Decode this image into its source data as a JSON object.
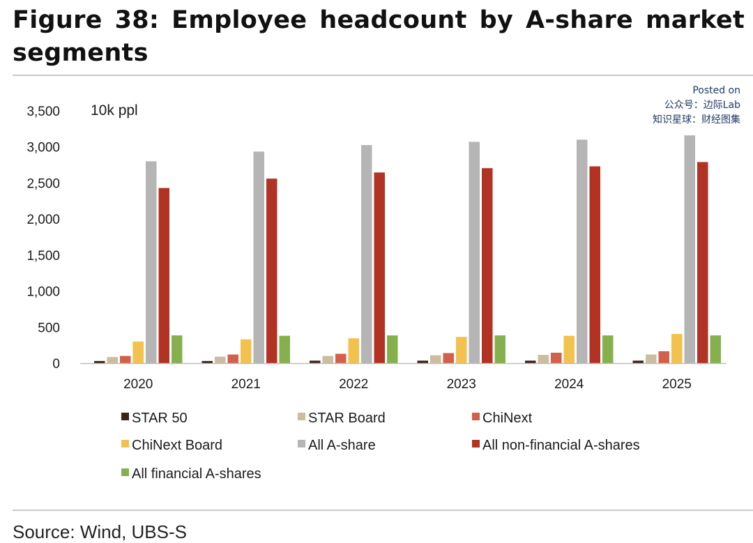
{
  "figure": {
    "title": "Figure 38: Employee headcount by A-share market segments",
    "source": "Source: Wind, UBS-S"
  },
  "watermark": {
    "lines": [
      "Posted on",
      "公众号：边际Lab",
      "知识星球：财经图集"
    ]
  },
  "chart_data": {
    "type": "bar",
    "title": "",
    "unit_label": "10k ppl",
    "xlabel": "",
    "ylabel": "",
    "ylim": [
      0,
      3500
    ],
    "yticks": [
      0,
      500,
      1000,
      1500,
      2000,
      2500,
      3000,
      3500
    ],
    "ytick_labels": [
      "0",
      "500",
      "1,000",
      "1,500",
      "2,000",
      "2,500",
      "3,000",
      "3,500"
    ],
    "grid": false,
    "legend_position": "bottom",
    "categories": [
      "2020",
      "2021",
      "2022",
      "2023",
      "2024",
      "2025"
    ],
    "series": [
      {
        "name": "STAR 50",
        "color": "#3b2418",
        "values": [
          30,
          30,
          35,
          35,
          35,
          35
        ]
      },
      {
        "name": "STAR Board",
        "color": "#cdbd9f",
        "values": [
          85,
          90,
          100,
          110,
          115,
          120
        ]
      },
      {
        "name": "ChiNext",
        "color": "#d2604a",
        "values": [
          100,
          120,
          130,
          140,
          145,
          165
        ]
      },
      {
        "name": "ChiNext Board",
        "color": "#f2c14e",
        "values": [
          300,
          330,
          345,
          365,
          380,
          405
        ]
      },
      {
        "name": "All A-share",
        "color": "#b5b5b5",
        "values": [
          2800,
          2935,
          3025,
          3070,
          3100,
          3160
        ]
      },
      {
        "name": "All non-financial A-shares",
        "color": "#b23323",
        "values": [
          2430,
          2560,
          2645,
          2705,
          2730,
          2790
        ]
      },
      {
        "name": "All financial A-shares",
        "color": "#86b04e",
        "values": [
          385,
          380,
          385,
          385,
          385,
          385
        ]
      }
    ]
  }
}
